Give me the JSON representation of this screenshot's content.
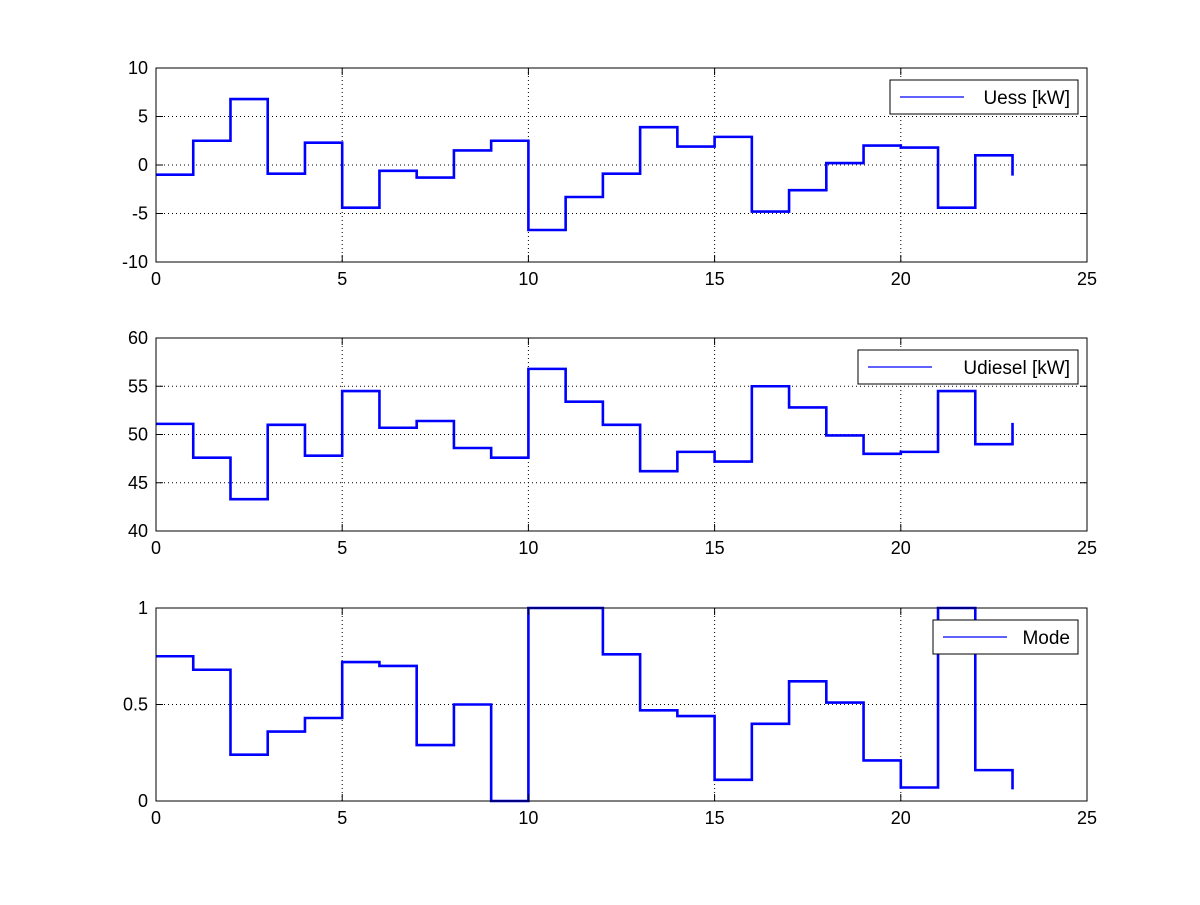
{
  "chart_data": [
    {
      "type": "line",
      "style": "stairs",
      "x": [
        0,
        1,
        2,
        3,
        4,
        5,
        6,
        7,
        8,
        9,
        10,
        11,
        12,
        13,
        14,
        15,
        16,
        17,
        18,
        19,
        20,
        21,
        22,
        23
      ],
      "series": [
        {
          "name": "Uess [kW]",
          "color": "#0000ff",
          "values": [
            -1.0,
            2.5,
            6.8,
            -0.9,
            2.3,
            -4.4,
            -0.6,
            -1.3,
            1.5,
            2.5,
            -6.7,
            -3.3,
            -0.9,
            3.9,
            1.9,
            2.9,
            -4.8,
            -2.6,
            0.2,
            2.0,
            1.8,
            -4.4,
            1.0,
            -1.1
          ]
        }
      ],
      "xlim": [
        0,
        25
      ],
      "ylim": [
        -10,
        10
      ],
      "xticks": [
        "0",
        "5",
        "10",
        "15",
        "20",
        "25"
      ],
      "yticks": [
        "-10",
        "-5",
        "0",
        "5",
        "10"
      ],
      "grid": true,
      "legend": "top-right"
    },
    {
      "type": "line",
      "style": "stairs",
      "x": [
        0,
        1,
        2,
        3,
        4,
        5,
        6,
        7,
        8,
        9,
        10,
        11,
        12,
        13,
        14,
        15,
        16,
        17,
        18,
        19,
        20,
        21,
        22,
        23
      ],
      "series": [
        {
          "name": "Udiesel [kW]",
          "color": "#0000ff",
          "values": [
            51.1,
            47.6,
            43.3,
            51.0,
            47.8,
            54.5,
            50.7,
            51.4,
            48.6,
            47.6,
            56.8,
            53.4,
            51.0,
            46.2,
            48.2,
            47.2,
            55.0,
            52.8,
            49.9,
            48.0,
            48.2,
            54.5,
            49.0,
            51.2
          ]
        }
      ],
      "xlim": [
        0,
        25
      ],
      "ylim": [
        40,
        60
      ],
      "xticks": [
        "0",
        "5",
        "10",
        "15",
        "20",
        "25"
      ],
      "yticks": [
        "40",
        "45",
        "50",
        "55",
        "60"
      ],
      "grid": true,
      "legend": "top-right"
    },
    {
      "type": "line",
      "style": "stairs",
      "x": [
        0,
        1,
        2,
        3,
        4,
        5,
        6,
        7,
        8,
        9,
        10,
        11,
        12,
        13,
        14,
        15,
        16,
        17,
        18,
        19,
        20,
        21,
        22,
        23
      ],
      "series": [
        {
          "name": "Mode",
          "color": "#0000ff",
          "values": [
            0.75,
            0.68,
            0.24,
            0.36,
            0.43,
            0.72,
            0.7,
            0.29,
            0.5,
            0.0,
            1.0,
            1.0,
            0.76,
            0.47,
            0.44,
            0.11,
            0.4,
            0.62,
            0.51,
            0.21,
            0.07,
            1.0,
            0.16,
            0.06
          ]
        }
      ],
      "xlim": [
        0,
        25
      ],
      "ylim": [
        0,
        1
      ],
      "xticks": [
        "0",
        "5",
        "10",
        "15",
        "20",
        "25"
      ],
      "yticks": [
        "0",
        "0.5",
        "1"
      ],
      "grid": true,
      "legend": "top-right"
    }
  ]
}
